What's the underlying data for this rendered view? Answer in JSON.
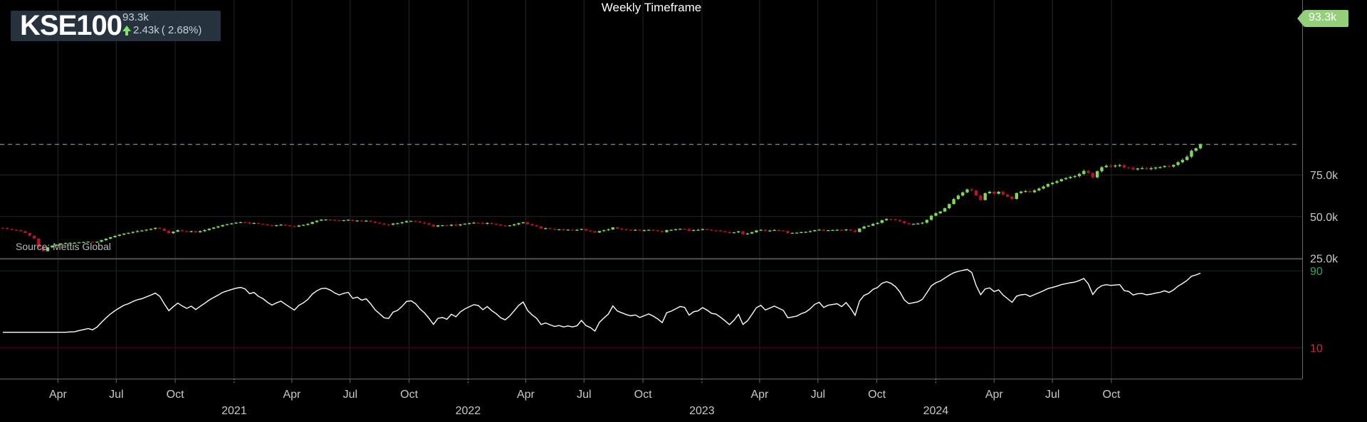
{
  "ticker": {
    "symbol": "KSE100",
    "last_price": "93.3k",
    "change": "2.43k",
    "change_pct": "( 2.68%)",
    "direction_icon": "up-arrow-icon"
  },
  "title": "Weekly Timeframe",
  "source": "Source: Mettis Global",
  "last_price_tag": "93.3k",
  "colors": {
    "background": "#000000",
    "up_candle": "#7ed957",
    "down_candle": "#b8122a",
    "grid": "#262626",
    "last_price_line": "#8fbf6a",
    "rsi_line": "#ffffff",
    "rsi_upper_label": "#2ca85a",
    "rsi_lower_label": "#d8243c",
    "axis_text": "#c8c8c8"
  },
  "chart_data": [
    {
      "type": "candlestick",
      "title": "Weekly Timeframe",
      "x_start": "2020-01-06",
      "interval": "weekly",
      "price_scale": {
        "min": 20000,
        "max": 100000,
        "ticks": [
          "25.0k",
          "50.0k",
          "75.0k"
        ]
      },
      "last_value": 93300,
      "closes": [
        43100,
        42550,
        42000,
        41800,
        41200,
        40100,
        38500,
        36800,
        31500,
        29200,
        31500,
        32500,
        33100,
        33650,
        34100,
        34200,
        34250,
        34500,
        34700,
        34900,
        34350,
        34850,
        35800,
        36700,
        37600,
        38400,
        39100,
        39800,
        40200,
        40800,
        41300,
        41600,
        42100,
        42600,
        43200,
        42700,
        41400,
        40000,
        40900,
        41800,
        41200,
        40700,
        41200,
        40500,
        41200,
        41900,
        42700,
        43400,
        44100,
        44900,
        45400,
        45900,
        46300,
        46600,
        46400,
        45800,
        46100,
        45600,
        45300,
        44800,
        44400,
        44800,
        45100,
        44700,
        44300,
        43900,
        44600,
        45000,
        45600,
        46700,
        47500,
        48100,
        48200,
        48000,
        47700,
        47500,
        47800,
        48000,
        47400,
        47600,
        47300,
        47500,
        47000,
        46300,
        45800,
        45200,
        45100,
        45800,
        46000,
        46500,
        47200,
        47300,
        47000,
        46400,
        45900,
        45100,
        44000,
        44700,
        44800,
        44500,
        45100,
        44700,
        45300,
        45700,
        46000,
        46300,
        46200,
        45700,
        46100,
        45600,
        45200,
        44600,
        44300,
        44700,
        45300,
        46000,
        46500,
        45400,
        44700,
        44100,
        42800,
        43000,
        42600,
        42200,
        42300,
        42000,
        42100,
        41900,
        42000,
        42500,
        41600,
        41200,
        40400,
        41300,
        41800,
        42300,
        43500,
        42700,
        42400,
        42100,
        41900,
        42000,
        41600,
        41800,
        42000,
        41700,
        41300,
        40700,
        41800,
        42000,
        42300,
        42600,
        42500,
        41500,
        41900,
        42000,
        42400,
        42100,
        41700,
        41600,
        41200,
        40700,
        40100,
        40500,
        41100,
        39400,
        39800,
        40600,
        41600,
        42000,
        41300,
        41600,
        41900,
        41600,
        41300,
        40100,
        40200,
        40300,
        40600,
        40800,
        41200,
        41800,
        42100,
        41500,
        41800,
        41900,
        42000,
        41700,
        42200,
        41600,
        40700,
        42800,
        44000,
        44500,
        45600,
        46200,
        47800,
        48500,
        48300,
        47900,
        47200,
        46000,
        45400,
        45600,
        45800,
        46300,
        48000,
        50500,
        52000,
        53000,
        55000,
        57500,
        60500,
        62600,
        64500,
        66300,
        65700,
        62600,
        59900,
        64000,
        64900,
        63700,
        64900,
        63200,
        61900,
        60600,
        64100,
        65000,
        65300,
        64600,
        65700,
        66800,
        68000,
        69500,
        70300,
        71200,
        72400,
        73100,
        73800,
        74300,
        75600,
        77400,
        76200,
        73500,
        77200,
        79600,
        80500,
        80300,
        80600,
        80900,
        79400,
        79200,
        78300,
        78900,
        79000,
        78700,
        79000,
        79400,
        79700,
        80300,
        80000,
        81000,
        82600,
        84000,
        85900,
        89500,
        91000,
        93300
      ]
    },
    {
      "type": "line",
      "name": "RSI",
      "levels": [
        90,
        10
      ],
      "level_labels": [
        "90",
        "10"
      ],
      "scale": [
        0,
        100
      ]
    }
  ],
  "x_axis": {
    "months": [
      "Apr",
      "Jul",
      "Oct",
      "Apr",
      "Jul",
      "Oct",
      "Apr",
      "Jul",
      "Oct",
      "Apr",
      "Jul",
      "Oct",
      "Apr",
      "Jul",
      "Oct"
    ],
    "years": [
      "2021",
      "2022",
      "2023",
      "2024"
    ]
  }
}
